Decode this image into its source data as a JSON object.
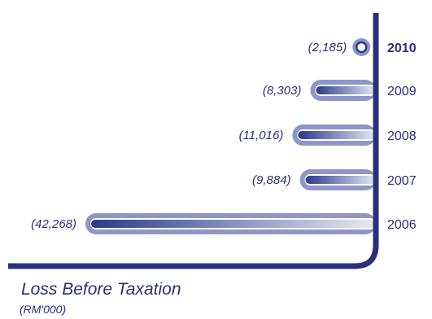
{
  "chart_data": {
    "type": "bar",
    "orientation": "horizontal",
    "title": "Loss Before Taxation",
    "unit": "(RM'000)",
    "highlight": "2010",
    "categories": [
      "2010",
      "2009",
      "2008",
      "2007",
      "2006"
    ],
    "values": [
      -2185,
      -8303,
      -11016,
      -9884,
      -42268
    ],
    "value_labels": [
      "(2,185)",
      "(8,303)",
      "(11,016)",
      "(9,884)",
      "(42,268)"
    ],
    "colors": {
      "axis": "#2a2f7a",
      "bar_dark": "#2a3a8a",
      "bar_light": "#e6e9f4",
      "ring": "#8d96c8",
      "text": "#2a2f7a"
    }
  }
}
